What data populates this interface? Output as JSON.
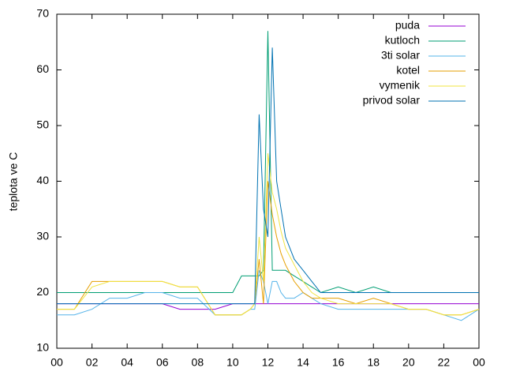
{
  "chart_data": {
    "type": "line",
    "ylabel": "teplota ve C",
    "x": [
      0,
      1,
      2,
      3,
      4,
      5,
      6,
      7,
      8,
      9,
      10,
      10.5,
      11,
      11.25,
      11.5,
      11.75,
      12,
      12.25,
      12.5,
      12.75,
      13,
      13.5,
      14,
      14.5,
      15,
      16,
      17,
      18,
      19,
      20,
      21,
      22,
      23,
      24
    ],
    "series": [
      {
        "name": "puda",
        "color": "#9400d3",
        "values": [
          18,
          18,
          18,
          18,
          18,
          18,
          18,
          17,
          17,
          17,
          18,
          18,
          18,
          18,
          18,
          18,
          18,
          18,
          18,
          18,
          18,
          18,
          18,
          18,
          18,
          18,
          18,
          18,
          18,
          18,
          18,
          18,
          18,
          18
        ]
      },
      {
        "name": "kutloch",
        "color": "#009e73",
        "values": [
          20,
          20,
          20,
          20,
          20,
          20,
          20,
          20,
          20,
          20,
          20,
          23,
          23,
          23,
          23,
          24,
          67,
          24,
          24,
          24,
          24,
          23,
          22,
          21,
          20,
          21,
          20,
          21,
          20,
          20,
          20,
          20,
          20,
          20
        ]
      },
      {
        "name": "3ti solar",
        "color": "#56b4e9",
        "values": [
          16,
          16,
          17,
          19,
          19,
          20,
          20,
          19,
          19,
          16,
          16,
          16,
          17,
          17,
          24,
          22,
          18,
          22,
          22,
          20,
          19,
          19,
          20,
          19,
          18,
          17,
          17,
          17,
          17,
          17,
          17,
          16,
          15,
          17
        ]
      },
      {
        "name": "kotel",
        "color": "#e69f00",
        "values": [
          17,
          17,
          22,
          22,
          22,
          22,
          22,
          21,
          21,
          16,
          16,
          16,
          17,
          18,
          26,
          18,
          40,
          34,
          30,
          27,
          25,
          22,
          20,
          19,
          19,
          19,
          18,
          19,
          18,
          17,
          17,
          16,
          16,
          17
        ]
      },
      {
        "name": "vymenik",
        "color": "#f0e442",
        "values": [
          17,
          17,
          21,
          22,
          22,
          22,
          22,
          21,
          21,
          16,
          16,
          16,
          17,
          18,
          30,
          22,
          45,
          38,
          35,
          31,
          28,
          25,
          22,
          20,
          19,
          18,
          18,
          18,
          18,
          17,
          17,
          16,
          16,
          17
        ]
      },
      {
        "name": "privod solar",
        "color": "#0072b2",
        "values": [
          18,
          18,
          18,
          18,
          18,
          18,
          18,
          18,
          18,
          18,
          18,
          18,
          18,
          18,
          52,
          35,
          30,
          64,
          40,
          35,
          30,
          26,
          24,
          22,
          20,
          20,
          20,
          20,
          20,
          20,
          20,
          20,
          20,
          20
        ]
      }
    ],
    "xlim": [
      0,
      24
    ],
    "xticks": [
      {
        "value": 0,
        "label": "00"
      },
      {
        "value": 2,
        "label": "02"
      },
      {
        "value": 4,
        "label": "04"
      },
      {
        "value": 6,
        "label": "06"
      },
      {
        "value": 8,
        "label": "08"
      },
      10,
      12,
      14,
      16,
      18,
      20,
      22,
      {
        "value": 24,
        "label": "00"
      }
    ],
    "ylim": [
      10,
      70
    ],
    "yticks": [
      10,
      20,
      30,
      40,
      50,
      60,
      70
    ],
    "legend": "top-right"
  }
}
